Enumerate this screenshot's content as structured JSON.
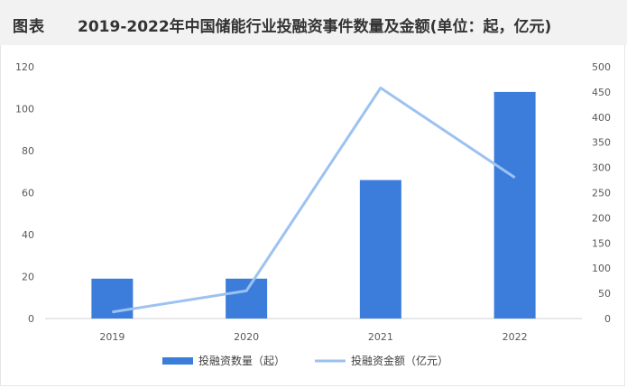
{
  "header": {
    "figure_label": "图表",
    "title": "2019-2022年中国储能行业投融资事件数量及金额(单位：起，亿元)"
  },
  "colors": {
    "bar": "#3c7ddc",
    "line": "#9cc2f0",
    "header_bg": "#f2f2f2"
  },
  "chart_data": {
    "type": "bar",
    "categories": [
      "2019",
      "2020",
      "2021",
      "2022"
    ],
    "series": [
      {
        "name": "投融资数量（起）",
        "type": "bar",
        "axis": "left",
        "values": [
          19,
          19,
          66,
          108
        ]
      },
      {
        "name": "投融资金额（亿元）",
        "type": "line",
        "axis": "right",
        "values": [
          13,
          55,
          458,
          280
        ]
      }
    ],
    "y_left": {
      "range": [
        0,
        120
      ],
      "ticks": [
        "0",
        "20",
        "40",
        "60",
        "80",
        "100",
        "120"
      ]
    },
    "y_right": {
      "range": [
        0,
        500
      ],
      "ticks": [
        "0",
        "50",
        "100",
        "150",
        "200",
        "250",
        "300",
        "350",
        "400",
        "450",
        "500"
      ]
    },
    "grid": false,
    "legend_position": "bottom"
  }
}
